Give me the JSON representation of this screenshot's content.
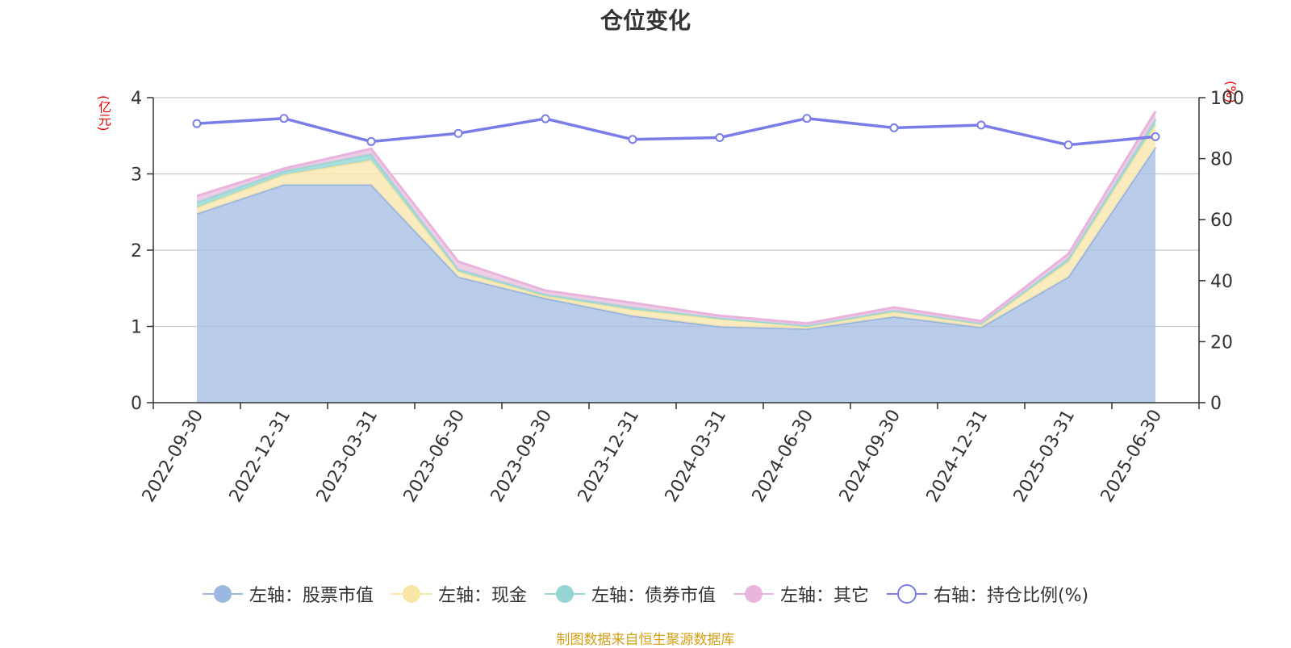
{
  "title": "仓位变化",
  "left_unit": "(亿元)",
  "right_unit": "(%)",
  "source": "制图数据来自恒生聚源数据库",
  "colors": {
    "stock": "#a7bfe4",
    "stock_line": "#94b2df",
    "cash": "#f9e9b3",
    "cash_line": "#f6e3a1",
    "bond": "#9ad8d7",
    "bond_line": "#94d7d6",
    "other": "#eac7e1",
    "other_line": "#e9b3dd",
    "ratio_line": "#7a7de8"
  },
  "legend": [
    {
      "label": "左轴：股票市值",
      "kind": "fill",
      "color": "#9db8e0"
    },
    {
      "label": "左轴：现金",
      "kind": "fill",
      "color": "#f7e6a6"
    },
    {
      "label": "左轴：债券市值",
      "kind": "fill",
      "color": "#95d5d4"
    },
    {
      "label": "左轴：其它",
      "kind": "fill",
      "color": "#e8b5dc"
    },
    {
      "label": "右轴：持仓比例(%)",
      "kind": "hollow",
      "color": "#7a7de8"
    }
  ],
  "chart_data": {
    "type": "area",
    "title": "仓位变化",
    "categories": [
      "2022-09-30",
      "2022-12-31",
      "2023-03-31",
      "2023-06-30",
      "2023-09-30",
      "2023-12-31",
      "2024-03-31",
      "2024-06-30",
      "2024-09-30",
      "2024-12-31",
      "2025-03-31",
      "2025-06-30"
    ],
    "left_axis": {
      "min": 0,
      "max": 4,
      "ticks": [
        0,
        1,
        2,
        3,
        4
      ],
      "unit": "(亿元)"
    },
    "right_axis": {
      "min": 0,
      "max": 100,
      "ticks": [
        0,
        20,
        40,
        60,
        80,
        100
      ],
      "unit": "(%)"
    },
    "series": [
      {
        "name": "左轴：股票市值",
        "axis": "left",
        "stacked": true,
        "values": [
          2.48,
          2.86,
          2.86,
          1.65,
          1.37,
          1.14,
          1.0,
          0.97,
          1.13,
          0.99,
          1.65,
          3.35
        ]
      },
      {
        "name": "左轴：现金",
        "axis": "left",
        "stacked": true,
        "values": [
          0.08,
          0.13,
          0.32,
          0.07,
          0.03,
          0.08,
          0.1,
          0.03,
          0.06,
          0.04,
          0.2,
          0.3
        ]
      },
      {
        "name": "左轴：债券市值",
        "axis": "left",
        "stacked": true,
        "values": [
          0.07,
          0.05,
          0.08,
          0.03,
          0.02,
          0.03,
          0.01,
          0.01,
          0.02,
          0.01,
          0.04,
          0.07
        ]
      },
      {
        "name": "左轴：其它",
        "axis": "left",
        "stacked": true,
        "values": [
          0.08,
          0.03,
          0.07,
          0.1,
          0.05,
          0.06,
          0.03,
          0.03,
          0.04,
          0.03,
          0.06,
          0.1
        ]
      },
      {
        "name": "右轴：持仓比例(%)",
        "axis": "right",
        "stacked": false,
        "values": [
          91.5,
          93.2,
          85.6,
          88.3,
          93.1,
          86.3,
          86.9,
          93.2,
          90.1,
          91.0,
          84.5,
          87.2
        ]
      }
    ],
    "grid": true,
    "legend_position": "bottom"
  }
}
